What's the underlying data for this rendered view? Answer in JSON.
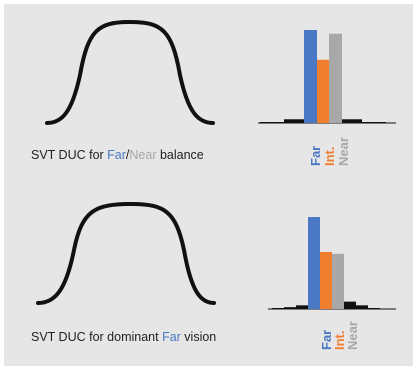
{
  "colors": {
    "background": "#e6e6e6",
    "far": "#4a78c4",
    "intermediate": "#ef7f2f",
    "near": "#a8a8a8",
    "curve": "#111111",
    "minor_bar": "#111111"
  },
  "bar_labels": {
    "far": "Far",
    "intermediate": "Int.",
    "near": "Near"
  },
  "panels": [
    {
      "caption_prefix": "SVT DUC for ",
      "caption_far": "Far",
      "caption_slash": "/",
      "caption_near": "Near",
      "caption_suffix": " balance"
    },
    {
      "caption_prefix": "SVT DUC for dominant ",
      "caption_far": "Far",
      "caption_suffix": " vision"
    }
  ],
  "chart_data": [
    {
      "type": "bar",
      "categories": [
        "",
        "",
        "",
        "Far",
        "Int.",
        "Near",
        "",
        "",
        ""
      ],
      "values": [
        0.5,
        1,
        4,
        100,
        68,
        96,
        4,
        1,
        0.5
      ],
      "colors": [
        "minor",
        "minor",
        "minor",
        "far",
        "intermediate",
        "near",
        "minor",
        "minor",
        "minor"
      ],
      "title": "",
      "xlabel": "",
      "ylabel": ""
    },
    {
      "type": "bar",
      "categories": [
        "",
        "",
        "",
        "Far",
        "Int.",
        "Near",
        "",
        "",
        ""
      ],
      "values": [
        0.5,
        2,
        4,
        100,
        62,
        60,
        8,
        4,
        1
      ],
      "colors": [
        "minor",
        "minor",
        "minor",
        "far",
        "intermediate",
        "near",
        "minor",
        "minor",
        "minor"
      ],
      "title": "",
      "xlabel": "",
      "ylabel": ""
    }
  ]
}
